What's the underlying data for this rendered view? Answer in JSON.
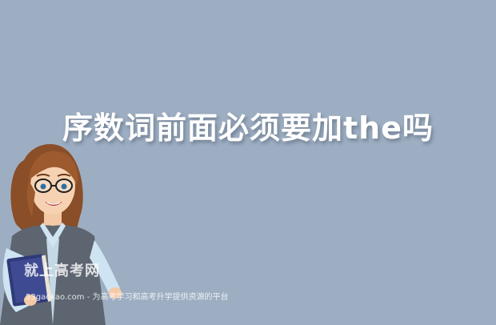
{
  "title": "序数词前面必须要加the吗",
  "watermark": {
    "text": "就上高考网",
    "subtitle": "53gaokao.com - 为高考学习和高考升学提供资源的平台"
  },
  "illustration": {
    "icon": "teacher-holding-book-icon"
  },
  "colors": {
    "background": "#9daec2",
    "title": "#ffffff"
  }
}
